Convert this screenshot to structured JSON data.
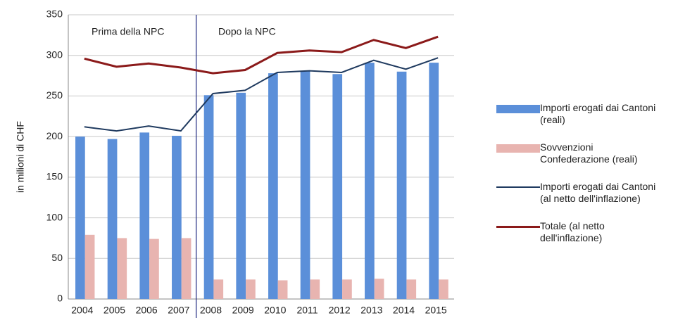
{
  "chart_data": {
    "type": "bar",
    "y_label": "in milioni di CHF",
    "annotations": [
      "Prima della NPC",
      "Dopo la NPC"
    ],
    "categories": [
      "2004",
      "2005",
      "2006",
      "2007",
      "2008",
      "2009",
      "2010",
      "2011",
      "2012",
      "2013",
      "2014",
      "2015"
    ],
    "series": [
      {
        "name": "Importi erogati dai Cantoni (reali)",
        "kind": "bar",
        "color": "#5b8fd9",
        "values": [
          200,
          197,
          205,
          201,
          251,
          254,
          278,
          281,
          277,
          291,
          280,
          291
        ]
      },
      {
        "name": "Sovvenzioni Confederazione (reali)",
        "kind": "bar",
        "color": "#e8b4b0",
        "values": [
          79,
          75,
          74,
          75,
          24,
          24,
          23,
          24,
          24,
          25,
          24,
          24
        ]
      },
      {
        "name": "Importi erogati dai Cantoni (al netto dell'inflazione)",
        "kind": "line",
        "color": "#1f3a5f",
        "values": [
          212,
          207,
          213,
          207,
          253,
          257,
          279,
          281,
          279,
          294,
          283,
          297
        ]
      },
      {
        "name": "Totale (al netto dell'inflazione)",
        "kind": "line",
        "color": "#8b1a1a",
        "values": [
          296,
          286,
          290,
          285,
          278,
          282,
          303,
          306,
          304,
          319,
          309,
          323
        ]
      }
    ],
    "ylim": [
      0,
      350
    ],
    "yticks": [
      0,
      50,
      100,
      150,
      200,
      250,
      300,
      350
    ],
    "grid": true
  }
}
